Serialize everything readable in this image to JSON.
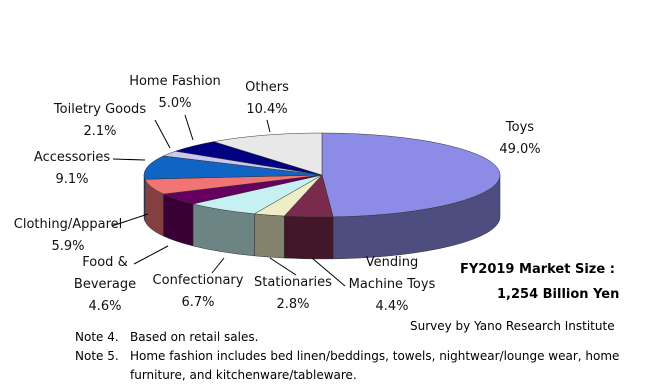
{
  "chart_data": {
    "type": "pie3d",
    "categories": [
      "Toys",
      "Vending Machine Toys",
      "Stationaries",
      "Confectionary",
      "Food & Beverage",
      "Clothing/Apparel",
      "Accessories",
      "Toiletry Goods",
      "Home Fashion",
      "Others"
    ],
    "values": [
      49.0,
      4.4,
      2.8,
      6.7,
      4.6,
      5.9,
      9.1,
      2.1,
      5.0,
      10.4
    ],
    "value_labels": [
      "49.0%",
      "4.4%",
      "2.8%",
      "6.7%",
      "4.6%",
      "5.9%",
      "9.1%",
      "2.1%",
      "5.0%",
      "10.4%"
    ],
    "colors": [
      "#8c8ce6",
      "#7a2a4c",
      "#eeeec6",
      "#c6f0f2",
      "#660060",
      "#f07474",
      "#1064c4",
      "#c8c8f0",
      "#000080",
      "#e8e8e8"
    ]
  },
  "market_size_label": "FY2019 Market Size :",
  "market_size": "1,254 Billion Yen",
  "source": "Survey  by Yano Research Institute",
  "notes": [
    {
      "label": "Note 4.",
      "text": "Based on retail sales."
    },
    {
      "label": "Note 5.",
      "text": "Home fashion includes bed linen/beddings, towels, nightwear/lounge wear, home furniture, and kitchenware/tableware."
    }
  ]
}
